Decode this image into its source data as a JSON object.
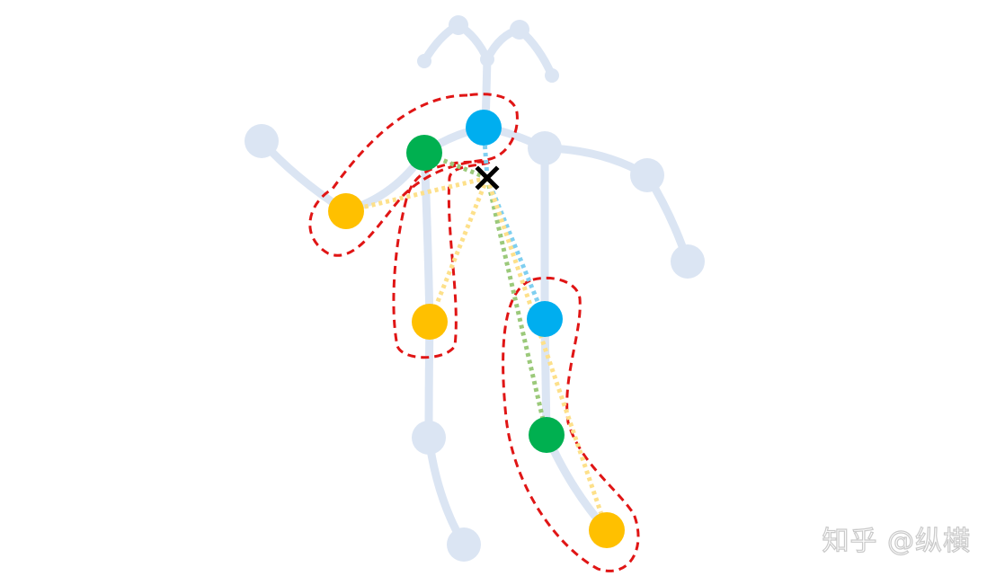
{
  "diagram": {
    "colors": {
      "skeleton": "#dbe5f3",
      "cyan": "#00aeef",
      "green": "#00b050",
      "yellow": "#ffc000",
      "region_outline": "#e01515",
      "center_mark": "#000000",
      "cyan_link": "#7fcff0",
      "green_link": "#9bc97a",
      "yellow_link": "#fde08a"
    },
    "icons": {
      "center": "x-mark-icon",
      "keypoint": "circle-dot-icon"
    }
  },
  "watermark": {
    "text": "知乎 @纵横"
  }
}
